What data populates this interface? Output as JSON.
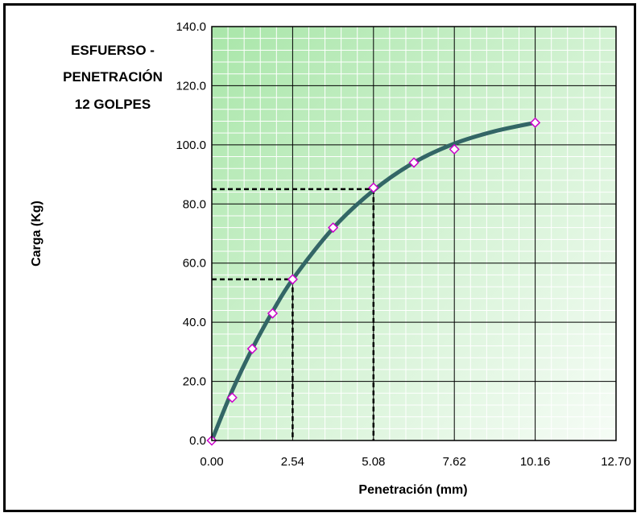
{
  "chart_data": {
    "type": "scatter",
    "title_lines": [
      "ESFUERSO -",
      "PENETRACIÓN",
      "12 GOLPES"
    ],
    "xlabel": "Penetración (mm)",
    "ylabel": "Carga (Kg)",
    "xlim": [
      0,
      12.7
    ],
    "ylim": [
      0,
      140
    ],
    "xticks": [
      "0.00",
      "2.54",
      "5.08",
      "7.62",
      "10.16",
      "12.70"
    ],
    "yticks": [
      "0.0",
      "20.0",
      "40.0",
      "60.0",
      "80.0",
      "100.0",
      "120.0",
      "140.0"
    ],
    "grid": true,
    "background": "green-gradient",
    "series": [
      {
        "marker": "diamond",
        "color": "#cc00cc",
        "x": [
          0.0,
          0.64,
          1.27,
          1.91,
          2.54,
          3.81,
          5.08,
          6.35,
          7.62,
          10.16
        ],
        "y": [
          0.0,
          14.5,
          31.0,
          43.0,
          54.5,
          72.0,
          85.5,
          94.0,
          98.5,
          107.5
        ]
      }
    ],
    "trendline": {
      "color": "#336666",
      "x": [
        0.0,
        0.64,
        1.27,
        1.91,
        2.54,
        3.81,
        5.08,
        6.35,
        7.62,
        8.89,
        10.16
      ],
      "y": [
        0.0,
        16.8,
        31.0,
        43.6,
        54.5,
        71.8,
        84.6,
        94.0,
        100.4,
        104.6,
        107.5
      ]
    },
    "reference_lines": [
      {
        "x": 2.54,
        "y": 54.5
      },
      {
        "x": 5.08,
        "y": 85.0
      }
    ]
  }
}
